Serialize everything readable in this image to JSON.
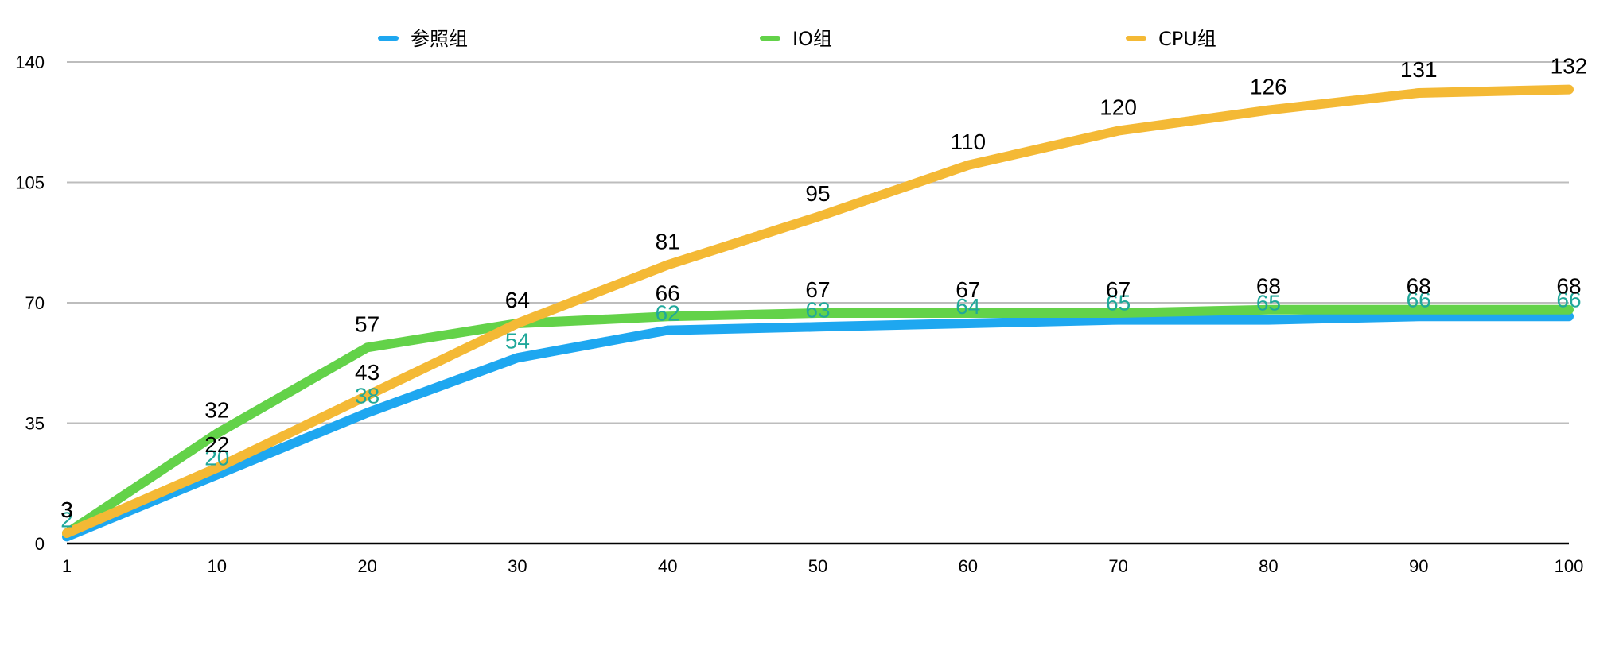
{
  "chart_data": {
    "type": "line",
    "categories": [
      "1",
      "10",
      "20",
      "30",
      "40",
      "50",
      "60",
      "70",
      "80",
      "90",
      "100"
    ],
    "ylim": [
      0,
      140
    ],
    "yticks": [
      0,
      35,
      70,
      105,
      140
    ],
    "grid": true,
    "legend_position": "top",
    "title": "",
    "xlabel": "",
    "ylabel": "",
    "series": [
      {
        "name": "参照组",
        "color": "#1EA7F0",
        "label_color": "#20A89A",
        "values": [
          2,
          20,
          38,
          54,
          62,
          63,
          64,
          65,
          65,
          66,
          66
        ]
      },
      {
        "name": "IO组",
        "color": "#63D249",
        "label_color": "#000000",
        "values": [
          3,
          32,
          57,
          64,
          66,
          67,
          67,
          67,
          68,
          68,
          68
        ]
      },
      {
        "name": "CPU组",
        "color": "#F4B935",
        "label_color": "#000000",
        "values": [
          3,
          22,
          43,
          64,
          81,
          95,
          110,
          120,
          126,
          131,
          132
        ]
      }
    ]
  }
}
